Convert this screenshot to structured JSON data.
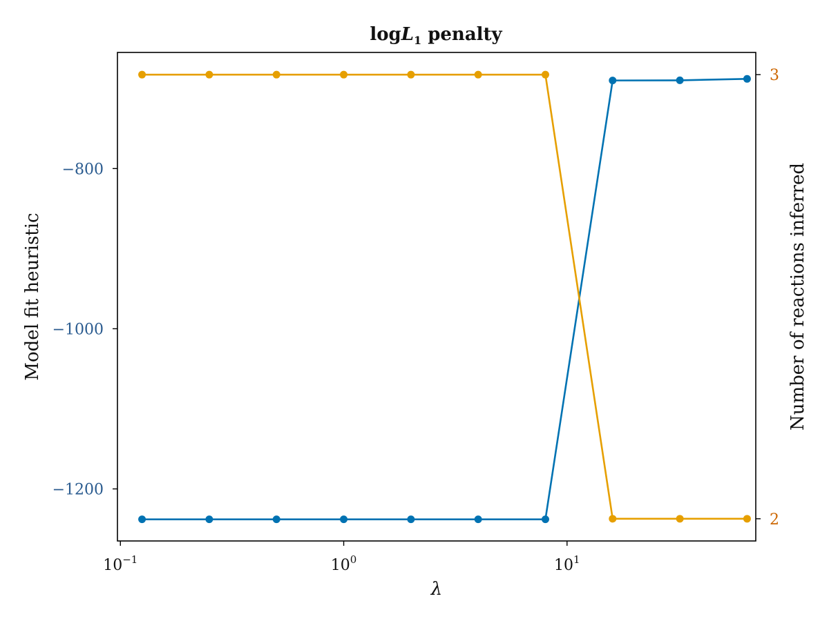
{
  "chart_data": {
    "type": "line",
    "title_prefix": "log",
    "title_symbol": "L",
    "title_subscript": "1",
    "title_suffix": " penalty",
    "xlabel": "λ",
    "ylabel_left": "Model fit heuristic",
    "ylabel_right": "Number of reactions inferred",
    "x_scale": "log",
    "xlim": [
      0.097,
      70
    ],
    "x_ticks": [
      {
        "value": 0.1,
        "base": "10",
        "exp": "−1"
      },
      {
        "value": 1,
        "base": "10",
        "exp": "0"
      },
      {
        "value": 10,
        "base": "10",
        "exp": "1"
      }
    ],
    "ylim_left": [
      -1265,
      -655
    ],
    "y_ticks_left": [
      {
        "value": -800,
        "label": "−800"
      },
      {
        "value": -1000,
        "label": "−1000"
      },
      {
        "value": -1200,
        "label": "−1200"
      }
    ],
    "ylim_right": [
      1.95,
      3.05
    ],
    "y_ticks_right": [
      {
        "value": 2,
        "label": "2"
      },
      {
        "value": 3,
        "label": "3"
      }
    ],
    "grid": false,
    "x": [
      0.125,
      0.25,
      0.5,
      1,
      2,
      4,
      8,
      16,
      32,
      64
    ],
    "series": [
      {
        "axis": "left",
        "color": "#0072b2",
        "values": [
          -1238,
          -1238,
          -1238,
          -1238,
          -1238,
          -1238,
          -1238,
          -690,
          -689.8,
          -688
        ]
      },
      {
        "axis": "right",
        "color": "#e69f00",
        "values": [
          3,
          3,
          3,
          3,
          3,
          3,
          3,
          2,
          2,
          2
        ]
      }
    ],
    "colors": {
      "left_tick_label": "#2a5b8f",
      "right_tick_label": "#cc6600",
      "axis": "#000000"
    }
  }
}
